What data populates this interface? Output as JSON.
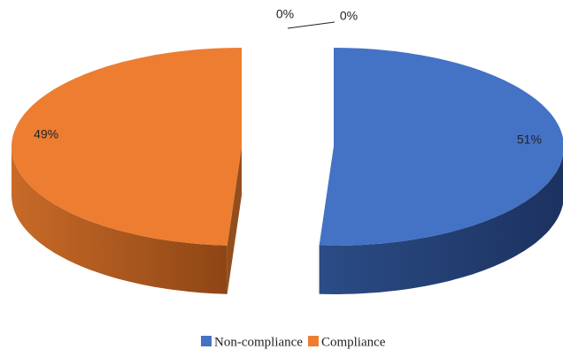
{
  "chart_data": {
    "type": "pie",
    "categories": [
      "Non-compliance",
      "Compliance",
      null,
      null
    ],
    "values": [
      51,
      49,
      0,
      0
    ],
    "value_labels": [
      "51%",
      "49%",
      "0%",
      "0%"
    ],
    "colors": [
      "#4472c4",
      "#ed7d31",
      "#a5a5a5",
      "#ffc000"
    ],
    "legend": "bottom"
  }
}
